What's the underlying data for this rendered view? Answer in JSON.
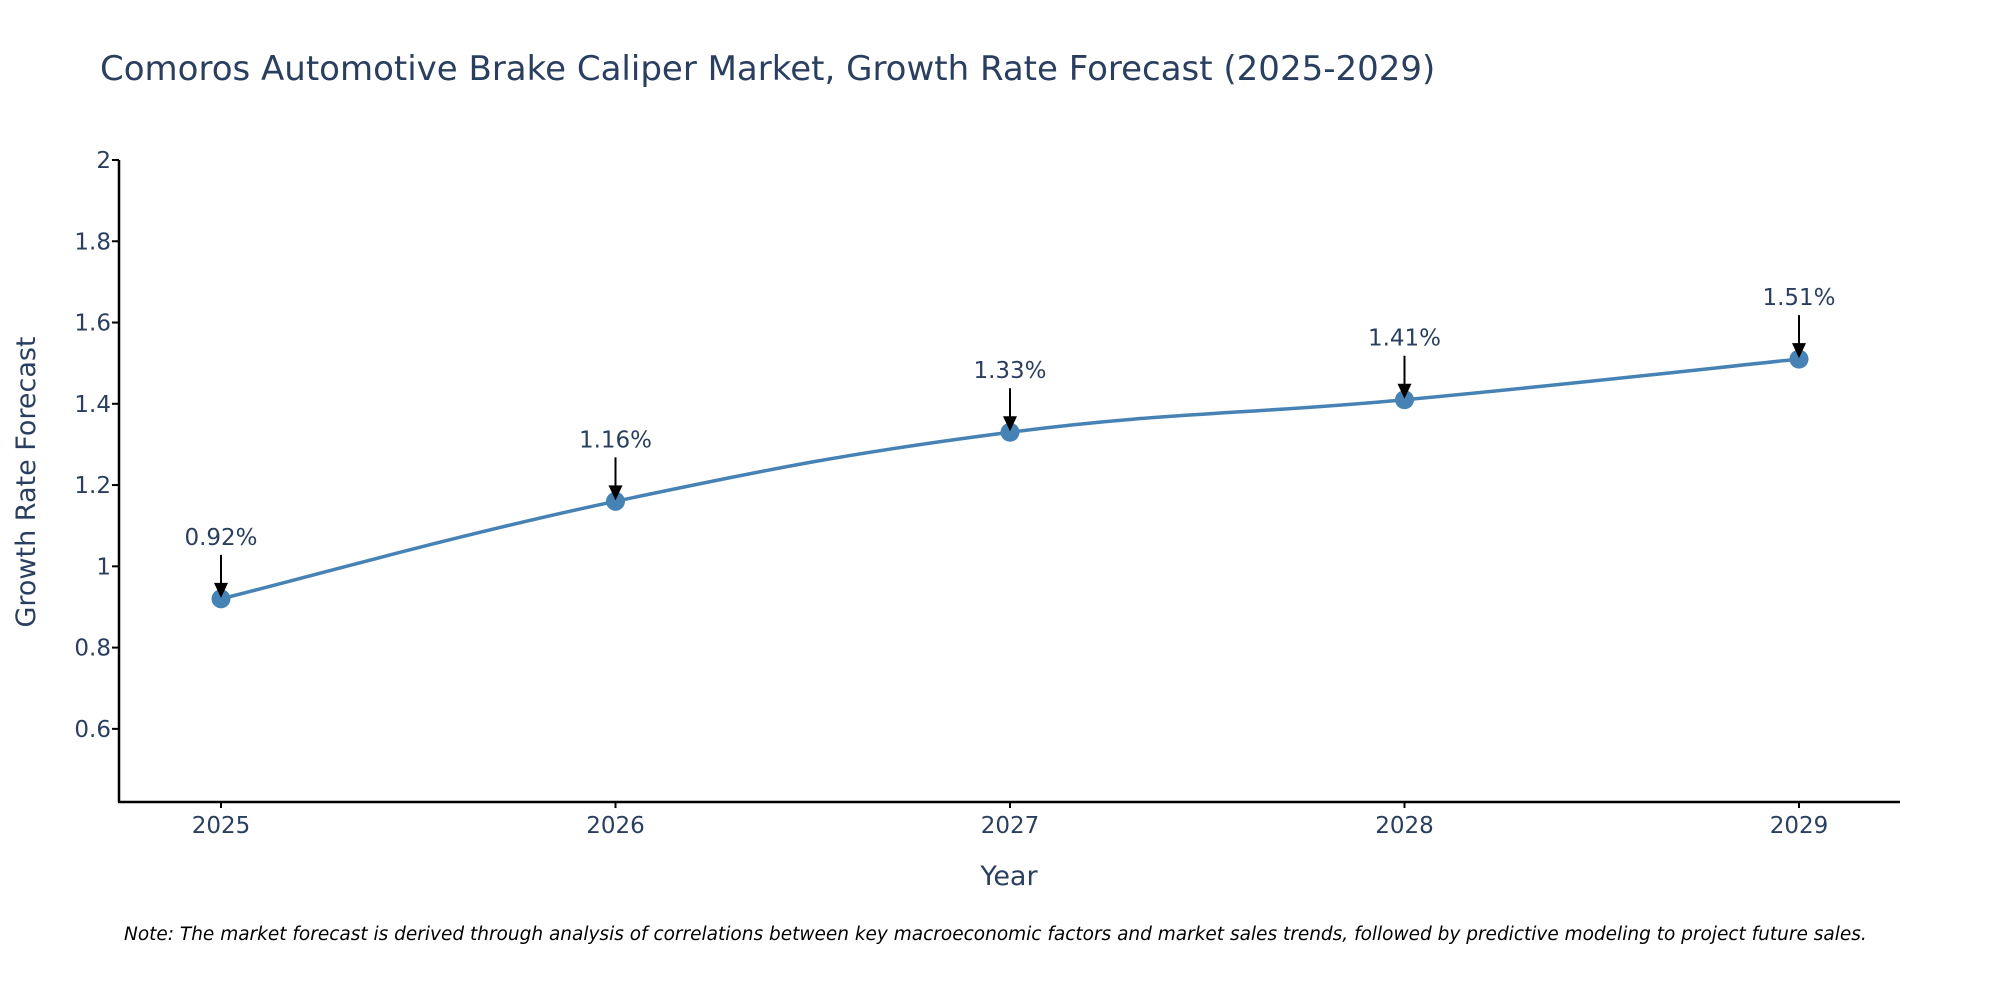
{
  "chart_data": {
    "type": "line",
    "title": "Comoros Automotive Brake Caliper Market, Growth Rate Forecast (2025-2029)",
    "xlabel": "Year",
    "ylabel": "Growth Rate Forecast",
    "categories": [
      "2025",
      "2026",
      "2027",
      "2028",
      "2029"
    ],
    "series": [
      {
        "name": "Growth Rate Forecast",
        "values": [
          0.92,
          1.16,
          1.33,
          1.41,
          1.51
        ],
        "labels": [
          "0.92%",
          "1.16%",
          "1.33%",
          "1.41%",
          "1.51%"
        ]
      }
    ],
    "yticks": [
      0.6,
      0.8,
      1,
      1.2,
      1.4,
      1.6,
      1.8,
      2
    ],
    "ytick_labels": [
      "0.6",
      "0.8",
      "1",
      "1.2",
      "1.4",
      "1.6",
      "1.8",
      "2"
    ],
    "ylim": [
      0.42,
      2
    ],
    "grid": false,
    "colors": {
      "line": "#4682b4",
      "marker": "#4682b4",
      "arrow": "#000000",
      "axis": "#000000",
      "text": "#2a3f5f"
    },
    "note": "Note: The market forecast is derived through analysis of correlations between key macroeconomic factors and market sales trends, followed by predictive modeling to project future sales."
  }
}
